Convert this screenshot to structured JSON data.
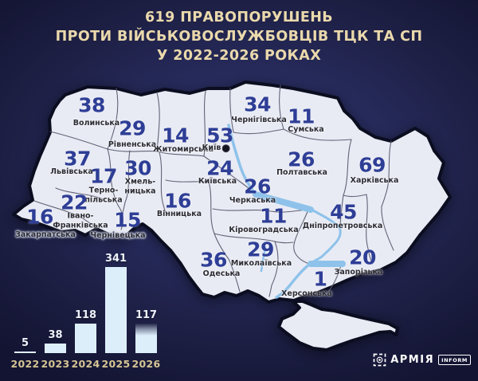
{
  "title": {
    "lines": [
      "619 ПРАВОПОРУШЕНЬ",
      "ПРОТИ ВІЙСЬКОВОСЛУЖБОВЦІВ ТЦК ТА СП",
      "У 2022-2026 РОКАХ"
    ]
  },
  "map": {
    "regions": [
      {
        "name": "Волинська",
        "value": 38,
        "vx": 115,
        "vy": 132,
        "nx": 121,
        "ny": 155
      },
      {
        "name": "Рівненська",
        "value": 29,
        "vx": 166,
        "vy": 161,
        "nx": 166,
        "ny": 182
      },
      {
        "name": "Житомирська",
        "value": 14,
        "vx": 220,
        "vy": 170,
        "nx": 230,
        "ny": 188
      },
      {
        "name": "Київ",
        "value": 53,
        "vx": 276,
        "vy": 170,
        "nx": 271,
        "ny": 186,
        "capital": true
      },
      {
        "name": "Чернігівська",
        "value": 34,
        "vx": 323,
        "vy": 131,
        "nx": 325,
        "ny": 151
      },
      {
        "name": "Сумська",
        "value": 11,
        "vx": 378,
        "vy": 146,
        "nx": 384,
        "ny": 163
      },
      {
        "name": "Львівська",
        "value": 37,
        "vx": 97,
        "vy": 199,
        "nx": 90,
        "ny": 216
      },
      {
        "name": "Тернопільська",
        "name_lines": [
          "Терно-",
          "пільська"
        ],
        "value": 17,
        "vx": 130,
        "vy": 221,
        "nx": 130,
        "ny": 245
      },
      {
        "name": "Хмельницька",
        "name_lines": [
          "Хмель-",
          "ницька"
        ],
        "value": 30,
        "vx": 173,
        "vy": 211,
        "nx": 176,
        "ny": 234
      },
      {
        "name": "Київська",
        "value": 24,
        "vx": 276,
        "vy": 211,
        "nx": 273,
        "ny": 228
      },
      {
        "name": "Полтавська",
        "value": 26,
        "vx": 378,
        "vy": 200,
        "nx": 379,
        "ny": 217
      },
      {
        "name": "Харківська",
        "value": 69,
        "vx": 467,
        "vy": 207,
        "nx": 470,
        "ny": 227
      },
      {
        "name": "Закарпатська",
        "value": 16,
        "vx": 50,
        "vy": 272,
        "nx": 57,
        "ny": 295,
        "halo": true
      },
      {
        "name": "Івано-Франківська",
        "name_lines": [
          "Івано-",
          "Франківська"
        ],
        "value": 22,
        "vx": 93,
        "vy": 254,
        "nx": 101,
        "ny": 277
      },
      {
        "name": "Чернівецька",
        "value": 15,
        "vx": 160,
        "vy": 276,
        "nx": 148,
        "ny": 296,
        "halo": true
      },
      {
        "name": "Вінницька",
        "value": 16,
        "vx": 223,
        "vy": 252,
        "nx": 225,
        "ny": 269
      },
      {
        "name": "Черкаська",
        "value": 26,
        "vx": 323,
        "vy": 234,
        "nx": 317,
        "ny": 252
      },
      {
        "name": "Кіровоградська",
        "value": 11,
        "vx": 343,
        "vy": 271,
        "nx": 331,
        "ny": 289
      },
      {
        "name": "Дніпропетровська",
        "value": 45,
        "vx": 431,
        "vy": 266,
        "nx": 430,
        "ny": 284
      },
      {
        "name": "Миколаївська",
        "value": 29,
        "vx": 327,
        "vy": 313,
        "nx": 328,
        "ny": 331
      },
      {
        "name": "Одеська",
        "value": 36,
        "vx": 268,
        "vy": 326,
        "nx": 278,
        "ny": 344
      },
      {
        "name": "Запорізька",
        "value": 20,
        "vx": 455,
        "vy": 323,
        "nx": 450,
        "ny": 342
      },
      {
        "name": "Херсонська",
        "value": 1,
        "vx": 402,
        "vy": 350,
        "nx": 385,
        "ny": 369
      }
    ]
  },
  "chart_data": {
    "type": "bar",
    "title": "619 правопорушень проти військовослужбовців ТЦК та СП у 2022-2026 роках",
    "categories": [
      "2022",
      "2023",
      "2024",
      "2025",
      "2026"
    ],
    "values": [
      5,
      38,
      118,
      341,
      117
    ],
    "xlabel": "",
    "ylabel": "",
    "ylim": [
      0,
      360
    ],
    "grid": false,
    "legend": false,
    "bar_color": "#ddeefb"
  },
  "logo": {
    "brand": "АРМІЯ",
    "badge": "INFORM"
  },
  "colors": {
    "background_center": "#31366c",
    "background_edge": "#131432",
    "map_fill": "#e9ebf4",
    "map_outline": "#0b0d20",
    "inner_border": "#5a5c70",
    "river": "#8ec2ea",
    "region_number": "#2e3e96",
    "region_label": "#2c2c34",
    "title_text": "#ead9ac",
    "bar_fill": "#ddeefb",
    "bar_value_label": "#eef2fb",
    "year_label": "#d5c493"
  }
}
